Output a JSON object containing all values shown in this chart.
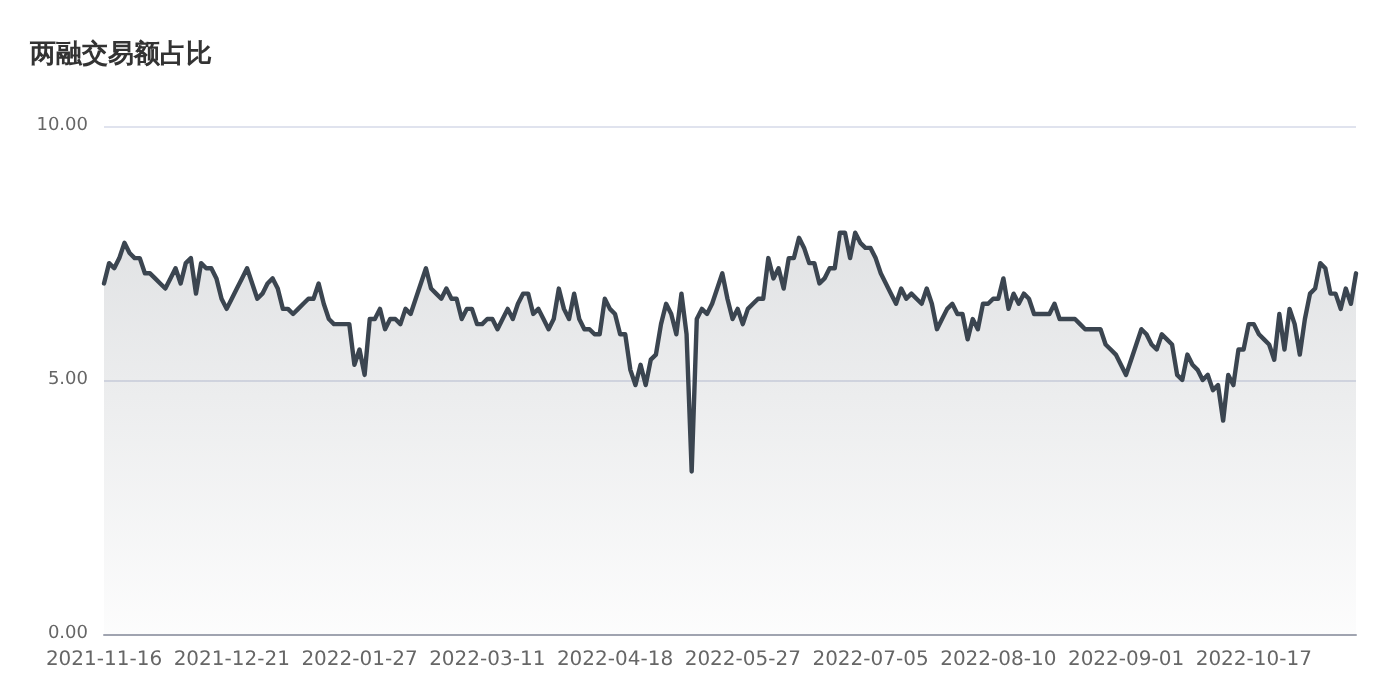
{
  "chart_data": {
    "type": "area",
    "title": "两融交易额占比",
    "categories": [
      "2021-11-16",
      null,
      null,
      null,
      null,
      null,
      null,
      null,
      null,
      null,
      null,
      null,
      null,
      null,
      null,
      null,
      null,
      null,
      null,
      null,
      null,
      null,
      null,
      null,
      null,
      "2021-12-21",
      null,
      null,
      null,
      null,
      null,
      null,
      null,
      null,
      null,
      null,
      null,
      null,
      null,
      null,
      null,
      null,
      null,
      null,
      null,
      null,
      null,
      null,
      null,
      null,
      "2022-01-27",
      null,
      null,
      null,
      null,
      null,
      null,
      null,
      null,
      null,
      null,
      null,
      null,
      null,
      null,
      null,
      null,
      null,
      null,
      null,
      null,
      null,
      null,
      null,
      null,
      "2022-03-11",
      null,
      null,
      null,
      null,
      null,
      null,
      null,
      null,
      null,
      null,
      null,
      null,
      null,
      null,
      null,
      null,
      null,
      null,
      null,
      null,
      null,
      null,
      null,
      null,
      "2022-04-18",
      null,
      null,
      null,
      null,
      null,
      null,
      null,
      null,
      null,
      null,
      null,
      null,
      null,
      null,
      null,
      null,
      null,
      null,
      null,
      null,
      null,
      null,
      null,
      null,
      "2022-05-27",
      null,
      null,
      null,
      null,
      null,
      null,
      null,
      null,
      null,
      null,
      null,
      null,
      null,
      null,
      null,
      null,
      null,
      null,
      null,
      null,
      null,
      null,
      null,
      null,
      "2022-07-05",
      null,
      null,
      null,
      null,
      null,
      null,
      null,
      null,
      null,
      null,
      null,
      null,
      null,
      null,
      null,
      null,
      null,
      null,
      null,
      null,
      null,
      null,
      null,
      null,
      "2022-08-10",
      null,
      null,
      null,
      null,
      null,
      null,
      null,
      null,
      null,
      null,
      null,
      null,
      null,
      null,
      null,
      null,
      null,
      null,
      null,
      null,
      null,
      null,
      null,
      null,
      "2022-09-01",
      null,
      null,
      null,
      null,
      null,
      null,
      null,
      null,
      null,
      null,
      null,
      null,
      null,
      null,
      null,
      null,
      null,
      null,
      null,
      null,
      null,
      null,
      null,
      null,
      "2022-10-17",
      null,
      null,
      null,
      null,
      null,
      null,
      null,
      null,
      null,
      null,
      null,
      null,
      null,
      null,
      null,
      null,
      null,
      null,
      null,
      null
    ],
    "series": [
      {
        "color": "#3b4550",
        "values": [
          6.9,
          7.3,
          7.2,
          7.4,
          7.7,
          7.5,
          7.4,
          7.4,
          7.1,
          7.1,
          7.0,
          6.9,
          6.8,
          7.0,
          7.2,
          6.9,
          7.3,
          7.4,
          6.7,
          7.3,
          7.2,
          7.2,
          7.0,
          6.6,
          6.4,
          6.6,
          6.8,
          7.0,
          7.2,
          6.9,
          6.6,
          6.7,
          6.9,
          7.0,
          6.8,
          6.4,
          6.4,
          6.3,
          6.4,
          6.5,
          6.6,
          6.6,
          6.9,
          6.5,
          6.2,
          6.1,
          6.1,
          6.1,
          6.1,
          5.3,
          5.6,
          5.1,
          6.2,
          6.2,
          6.4,
          6.0,
          6.2,
          6.2,
          6.1,
          6.4,
          6.3,
          6.6,
          6.9,
          7.2,
          6.8,
          6.7,
          6.6,
          6.8,
          6.6,
          6.6,
          6.2,
          6.4,
          6.4,
          6.1,
          6.1,
          6.2,
          6.2,
          6.0,
          6.2,
          6.4,
          6.2,
          6.5,
          6.7,
          6.7,
          6.3,
          6.4,
          6.2,
          6.0,
          6.2,
          6.8,
          6.4,
          6.2,
          6.7,
          6.2,
          6.0,
          6.0,
          5.9,
          5.9,
          6.6,
          6.4,
          6.3,
          5.9,
          5.9,
          5.2,
          4.9,
          5.3,
          4.9,
          5.4,
          5.5,
          6.1,
          6.5,
          6.3,
          5.9,
          6.7,
          5.9,
          3.2,
          6.2,
          6.4,
          6.3,
          6.5,
          6.8,
          7.1,
          6.6,
          6.2,
          6.4,
          6.1,
          6.4,
          6.5,
          6.6,
          6.6,
          7.4,
          7.0,
          7.2,
          6.8,
          7.4,
          7.4,
          7.8,
          7.6,
          7.3,
          7.3,
          6.9,
          7.0,
          7.2,
          7.2,
          7.9,
          7.9,
          7.4,
          7.9,
          7.7,
          7.6,
          7.6,
          7.4,
          7.1,
          6.9,
          6.7,
          6.5,
          6.8,
          6.6,
          6.7,
          6.6,
          6.5,
          6.8,
          6.5,
          6.0,
          6.2,
          6.4,
          6.5,
          6.3,
          6.3,
          5.8,
          6.2,
          6.0,
          6.5,
          6.5,
          6.6,
          6.6,
          7.0,
          6.4,
          6.7,
          6.5,
          6.7,
          6.6,
          6.3,
          6.3,
          6.3,
          6.3,
          6.5,
          6.2,
          6.2,
          6.2,
          6.2,
          6.1,
          6.0,
          6.0,
          6.0,
          6.0,
          5.7,
          5.6,
          5.5,
          5.3,
          5.1,
          5.4,
          5.7,
          6.0,
          5.9,
          5.7,
          5.6,
          5.9,
          5.8,
          5.7,
          5.1,
          5.0,
          5.5,
          5.3,
          5.2,
          5.0,
          5.1,
          4.8,
          4.9,
          4.2,
          5.1,
          4.9,
          5.6,
          5.6,
          6.1,
          6.1,
          5.9,
          5.8,
          5.7,
          5.4,
          6.3,
          5.6,
          6.4,
          6.1,
          5.5,
          6.2,
          6.7,
          6.8,
          7.3,
          7.2,
          6.7,
          6.7,
          6.4,
          6.8,
          6.5,
          7.1
        ]
      }
    ],
    "ylim": [
      0,
      10
    ],
    "yticks": [
      {
        "value": 0,
        "label": "0.00"
      },
      {
        "value": 5,
        "label": "5.00"
      },
      {
        "value": 10,
        "label": "10.00"
      }
    ],
    "grid": "y"
  }
}
